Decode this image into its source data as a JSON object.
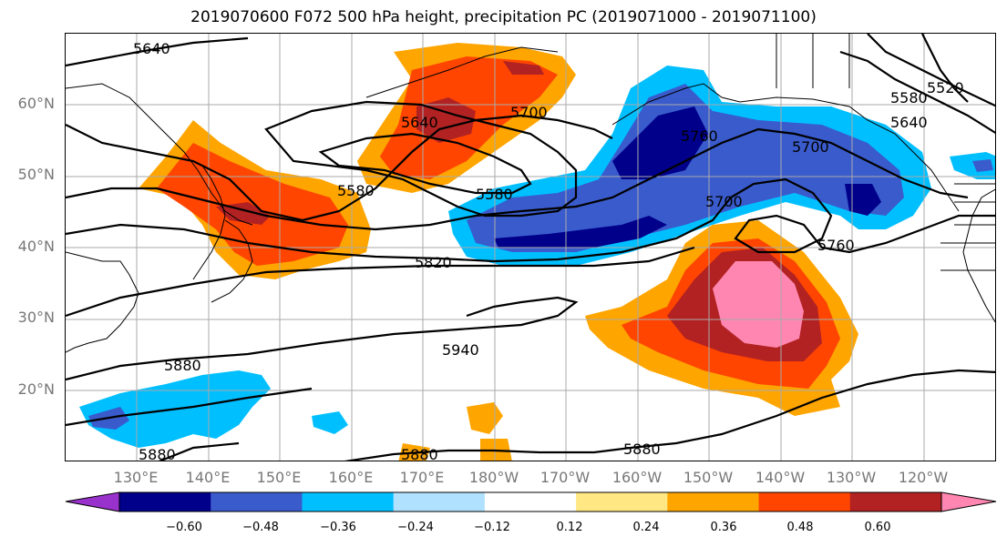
{
  "title": "2019070600 F072 500 hPa height, precipitation PC (2019071000 - 2019071100)",
  "latitude_labels": [
    "60°N",
    "50°N",
    "40°N",
    "30°N",
    "20°N"
  ],
  "longitude_labels": [
    "130°E",
    "140°E",
    "150°E",
    "160°E",
    "170°E",
    "180°W",
    "170°W",
    "160°W",
    "150°W",
    "140°W",
    "130°W",
    "120°W"
  ],
  "contour_labels": [
    "5640",
    "5640",
    "5700",
    "5640",
    "5580",
    "5520",
    "5580",
    "5580",
    "5700",
    "5700",
    "5760",
    "5760",
    "5820",
    "5940",
    "5880",
    "5880",
    "5880",
    "5880"
  ],
  "colorbar": {
    "ticks": [
      "−0.60",
      "−0.48",
      "−0.36",
      "−0.24",
      "−0.12",
      "0.12",
      "0.24",
      "0.36",
      "0.48",
      "0.60"
    ],
    "colors": [
      "#9932cc",
      "#00008b",
      "#3a5bcc",
      "#00bfff",
      "#b0e2ff",
      "#ffffff",
      "#ffe883",
      "#ffa500",
      "#ff4500",
      "#b22222",
      "#ff86b0"
    ]
  },
  "colors": {
    "land_outline": "#000000",
    "grid": "#aaaaaa",
    "contour": "#000000",
    "tick_label": "#777777"
  }
}
